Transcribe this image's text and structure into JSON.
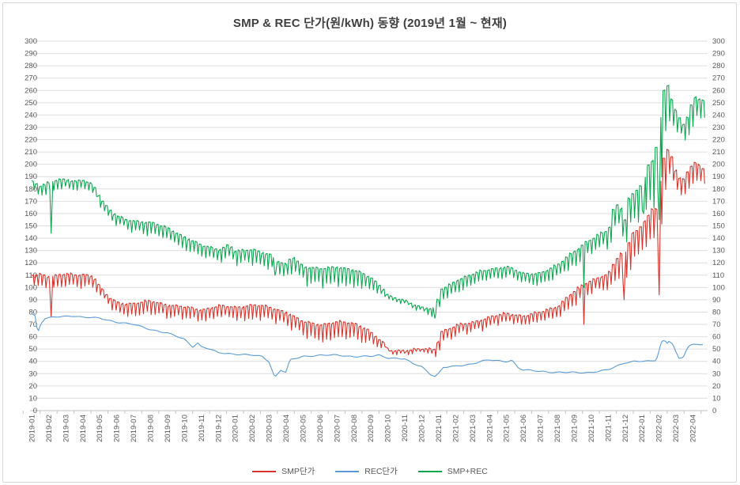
{
  "title": "SMP & REC 단가(원/kWh) 동향 (2019년 1월 ~ 현재)",
  "colors": {
    "smp_line": "#d8342c",
    "rec_line": "#5b9bd5",
    "sum_line": "#0ca750",
    "gridline": "#dedede",
    "axis_line": "#c0c0c0",
    "tick_label": "#595959",
    "title_text": "#3f3f3f",
    "frame_border": "#d7d7d7"
  },
  "chart_data": {
    "type": "line",
    "title": "SMP & REC 단가(원/kWh) 동향 (2019년 1월 ~ 현재)",
    "xlabel": "",
    "ylabel": "원/kWh",
    "ylim": [
      0,
      300
    ],
    "y_tick_step": 10,
    "grid": true,
    "y_axis_sides": [
      "left",
      "right"
    ],
    "legend_position": "bottom",
    "x_labels": [
      "2019-01",
      "2019-02",
      "2019-03",
      "2019-04",
      "2019-05",
      "2019-06",
      "2019-07",
      "2019-08",
      "2019-09",
      "2019-10",
      "2019-11",
      "2019-12",
      "2020-01",
      "2020-02",
      "2020-03",
      "2020-04",
      "2020-05",
      "2020-06",
      "2020-07",
      "2020-08",
      "2020-09",
      "2020-10",
      "2020-11",
      "2020-12",
      "2021-01",
      "2021-02",
      "2021-03",
      "2021-04",
      "2021-05",
      "2021-06",
      "2021-07",
      "2021-08",
      "2021-09",
      "2021-10",
      "2021-11",
      "2021-12",
      "2022-01",
      "2022-02",
      "2022-03",
      "2022-04"
    ],
    "series": [
      {
        "name": "SMP단가",
        "color": "#d8342c",
        "style": "sawtooth",
        "anchors": [
          [
            0,
            110
          ],
          [
            0.5,
            111
          ],
          [
            1,
            109
          ],
          [
            1.5,
            110
          ],
          [
            2,
            111
          ],
          [
            2.5,
            110
          ],
          [
            3,
            111
          ],
          [
            3.6,
            109
          ],
          [
            4,
            100
          ],
          [
            4.5,
            92
          ],
          [
            5,
            88
          ],
          [
            5.5,
            87
          ],
          [
            6,
            87
          ],
          [
            7,
            89
          ],
          [
            8,
            86
          ],
          [
            9,
            84
          ],
          [
            10,
            82
          ],
          [
            11,
            85
          ],
          [
            12,
            84
          ],
          [
            13,
            86
          ],
          [
            14,
            84
          ],
          [
            15,
            80
          ],
          [
            15.6,
            75
          ],
          [
            16,
            72
          ],
          [
            17,
            70
          ],
          [
            18,
            72
          ],
          [
            19,
            71
          ],
          [
            19.8,
            66
          ],
          [
            20,
            63
          ],
          [
            20.7,
            55
          ],
          [
            21,
            49
          ],
          [
            22,
            49
          ],
          [
            23,
            50
          ],
          [
            23.85,
            50
          ],
          [
            24,
            64
          ],
          [
            24.5,
            66
          ],
          [
            25,
            69
          ],
          [
            26,
            72
          ],
          [
            27,
            76
          ],
          [
            28,
            79
          ],
          [
            29,
            77
          ],
          [
            30,
            80
          ],
          [
            31,
            85
          ],
          [
            31.7,
            94
          ],
          [
            32,
            97
          ],
          [
            32.7,
            104
          ],
          [
            33,
            106
          ],
          [
            33.7,
            110
          ],
          [
            34,
            111
          ],
          [
            34.4,
            122
          ],
          [
            34.7,
            127
          ],
          [
            35,
            129
          ],
          [
            35.4,
            145
          ],
          [
            35.8,
            147
          ],
          [
            36,
            152
          ],
          [
            36.4,
            160
          ],
          [
            36.7,
            165
          ],
          [
            36.9,
            161
          ],
          [
            37.1,
            200
          ],
          [
            37.35,
            208
          ],
          [
            37.6,
            214
          ],
          [
            37.8,
            201
          ],
          [
            38,
            194
          ],
          [
            38.3,
            186
          ],
          [
            38.55,
            190
          ],
          [
            38.8,
            200
          ],
          [
            39,
            196
          ],
          [
            39.2,
            206
          ],
          [
            39.45,
            192
          ],
          [
            39.7,
            202
          ]
        ],
        "weekly_dip_by_month": [
          11,
          11,
          11,
          11,
          10,
          10,
          11,
          12,
          11,
          11,
          10,
          10,
          12,
          13,
          12,
          12,
          14,
          15,
          15,
          15,
          11,
          3,
          3,
          3,
          8,
          9,
          8,
          8,
          8,
          8,
          9,
          9,
          12,
          10,
          13,
          26,
          20,
          38,
          15,
          16
        ],
        "event_dips": [
          [
            1.15,
            76
          ],
          [
            32.6,
            70
          ],
          [
            34.95,
            90
          ],
          [
            37.05,
            94
          ]
        ]
      },
      {
        "name": "REC단가",
        "color": "#5b9bd5",
        "style": "smooth",
        "anchors": [
          [
            0,
            79
          ],
          [
            0.2,
            77
          ],
          [
            0.35,
            63
          ],
          [
            0.55,
            71
          ],
          [
            0.8,
            75
          ],
          [
            1.5,
            76
          ],
          [
            2.5,
            77
          ],
          [
            3,
            76
          ],
          [
            4,
            75
          ],
          [
            5,
            72
          ],
          [
            6,
            70
          ],
          [
            7,
            66
          ],
          [
            8,
            63
          ],
          [
            9,
            58
          ],
          [
            9.5,
            52
          ],
          [
            9.8,
            55
          ],
          [
            10,
            52
          ],
          [
            10.5,
            50
          ],
          [
            11,
            47
          ],
          [
            12,
            46
          ],
          [
            13,
            45
          ],
          [
            13.6,
            44
          ],
          [
            14,
            40
          ],
          [
            14.35,
            27
          ],
          [
            14.7,
            33
          ],
          [
            15,
            31
          ],
          [
            15.25,
            41
          ],
          [
            16,
            44
          ],
          [
            17,
            45
          ],
          [
            18,
            45
          ],
          [
            19,
            44
          ],
          [
            20,
            44
          ],
          [
            20.5,
            45
          ],
          [
            21,
            43
          ],
          [
            22,
            42
          ],
          [
            22.5,
            38
          ],
          [
            23,
            36
          ],
          [
            23.5,
            30
          ],
          [
            23.8,
            28
          ],
          [
            24,
            30
          ],
          [
            24.3,
            35
          ],
          [
            25,
            36
          ],
          [
            26,
            38
          ],
          [
            26.5,
            40
          ],
          [
            27,
            41
          ],
          [
            28,
            40
          ],
          [
            28.35,
            41
          ],
          [
            28.7,
            35
          ],
          [
            29,
            33
          ],
          [
            30,
            32
          ],
          [
            31,
            31
          ],
          [
            32,
            31
          ],
          [
            33,
            31
          ],
          [
            33.5,
            32
          ],
          [
            34,
            33
          ],
          [
            34.5,
            36
          ],
          [
            35,
            39
          ],
          [
            35.5,
            40
          ],
          [
            36.5,
            40
          ],
          [
            36.85,
            41
          ],
          [
            37.05,
            50
          ],
          [
            37.15,
            56
          ],
          [
            37.35,
            57
          ],
          [
            37.5,
            55
          ],
          [
            37.62,
            57
          ],
          [
            37.85,
            54
          ],
          [
            38,
            48
          ],
          [
            38.2,
            42
          ],
          [
            38.45,
            43
          ],
          [
            38.65,
            50
          ],
          [
            38.85,
            53
          ],
          [
            39.3,
            54
          ],
          [
            39.7,
            54
          ]
        ],
        "weekly_dip_by_month": [],
        "event_dips": []
      },
      {
        "name": "SMP+REC",
        "color": "#0ca750",
        "style": "sawtooth",
        "anchors": [
          [
            0,
            186
          ],
          [
            0.5,
            182
          ],
          [
            1,
            185
          ],
          [
            1.5,
            188
          ],
          [
            2,
            188
          ],
          [
            2.5,
            186
          ],
          [
            3,
            187
          ],
          [
            3.6,
            183
          ],
          [
            4,
            173
          ],
          [
            4.5,
            164
          ],
          [
            5,
            158
          ],
          [
            5.5,
            155
          ],
          [
            6,
            154
          ],
          [
            7,
            153
          ],
          [
            8,
            148
          ],
          [
            9,
            141
          ],
          [
            10,
            134
          ],
          [
            11,
            131
          ],
          [
            11.6,
            135
          ],
          [
            12,
            129
          ],
          [
            13,
            131
          ],
          [
            14,
            127
          ],
          [
            14.5,
            121
          ],
          [
            15,
            118
          ],
          [
            15.3,
            126
          ],
          [
            16,
            117
          ],
          [
            17,
            115
          ],
          [
            18,
            117
          ],
          [
            19,
            114
          ],
          [
            20,
            108
          ],
          [
            20.7,
            99
          ],
          [
            21,
            93
          ],
          [
            22,
            89
          ],
          [
            23,
            84
          ],
          [
            23.85,
            82
          ],
          [
            24,
            98
          ],
          [
            24.5,
            101
          ],
          [
            25,
            106
          ],
          [
            26,
            111
          ],
          [
            27,
            115
          ],
          [
            28,
            117
          ],
          [
            29,
            111
          ],
          [
            30,
            112
          ],
          [
            31,
            118
          ],
          [
            31.7,
            127
          ],
          [
            32,
            130
          ],
          [
            32.7,
            137
          ],
          [
            33,
            139
          ],
          [
            33.7,
            145
          ],
          [
            34,
            147
          ],
          [
            34.35,
            168
          ],
          [
            34.7,
            166
          ],
          [
            34.95,
            154
          ],
          [
            35.1,
            170
          ],
          [
            35.5,
            177
          ],
          [
            36,
            184
          ],
          [
            36.3,
            199
          ],
          [
            36.6,
            204
          ],
          [
            36.9,
            219
          ],
          [
            37.1,
            248
          ],
          [
            37.35,
            267
          ],
          [
            37.55,
            263
          ],
          [
            37.8,
            247
          ],
          [
            38,
            242
          ],
          [
            38.3,
            235
          ],
          [
            38.5,
            231
          ],
          [
            38.8,
            246
          ],
          [
            39,
            252
          ],
          [
            39.2,
            258
          ],
          [
            39.45,
            249
          ],
          [
            39.7,
            255
          ]
        ],
        "weekly_dip_by_month": [
          9,
          9,
          8,
          8,
          10,
          9,
          10,
          11,
          11,
          12,
          11,
          10,
          12,
          13,
          13,
          12,
          15,
          16,
          16,
          16,
          12,
          4,
          4,
          4,
          9,
          10,
          9,
          9,
          9,
          9,
          10,
          10,
          13,
          11,
          15,
          24,
          28,
          52,
          17,
          18
        ],
        "event_dips": [
          [
            1.15,
            144
          ],
          [
            14.35,
            110
          ],
          [
            23.8,
            75
          ],
          [
            32.6,
            100
          ],
          [
            36.1,
            160
          ],
          [
            37.05,
            155
          ]
        ]
      }
    ]
  },
  "legend": {
    "items": [
      "SMP단가",
      "REC단가",
      "SMP+REC"
    ]
  }
}
